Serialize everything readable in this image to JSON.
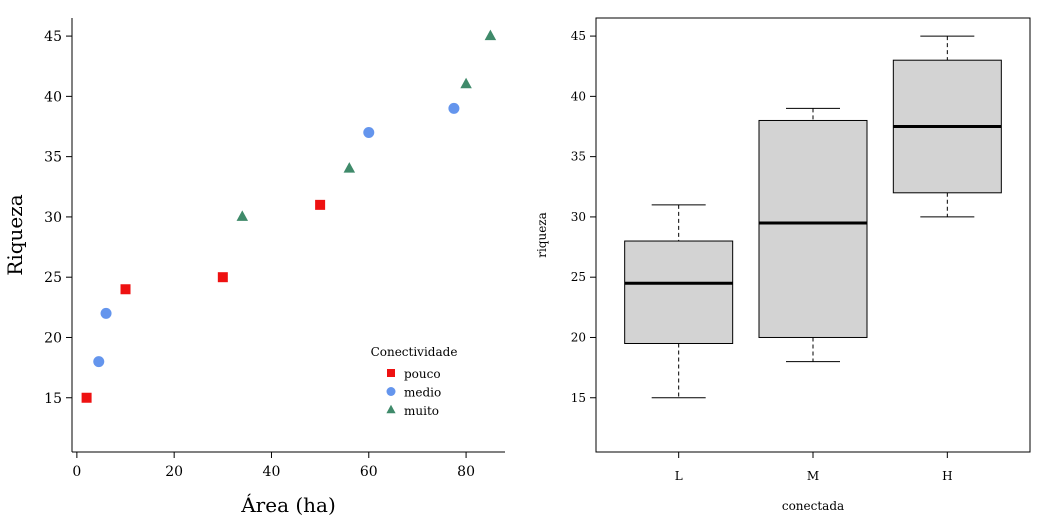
{
  "chart_data": [
    {
      "type": "scatter",
      "xlabel": "Área (ha)",
      "ylabel": "Riqueza",
      "xlim": [
        -1,
        88
      ],
      "ylim": [
        10.5,
        46.5
      ],
      "x_ticks": [
        0,
        20,
        40,
        60,
        80
      ],
      "y_ticks": [
        15,
        20,
        25,
        30,
        35,
        40,
        45
      ],
      "legend": {
        "title": "Conectividade",
        "placement": "bottom-right"
      },
      "series": [
        {
          "name": "pouco",
          "marker": "square",
          "color": "#ee1111",
          "points": [
            {
              "x": 2,
              "y": 15
            },
            {
              "x": 10,
              "y": 24
            },
            {
              "x": 30,
              "y": 25
            },
            {
              "x": 50,
              "y": 31
            }
          ]
        },
        {
          "name": "medio",
          "marker": "circle",
          "color": "#6495ed",
          "points": [
            {
              "x": 4.5,
              "y": 18
            },
            {
              "x": 6,
              "y": 22
            },
            {
              "x": 60,
              "y": 37
            },
            {
              "x": 77.5,
              "y": 39
            }
          ]
        },
        {
          "name": "muito",
          "marker": "triangle",
          "color": "#3f8a6a",
          "points": [
            {
              "x": 34,
              "y": 30
            },
            {
              "x": 56,
              "y": 34
            },
            {
              "x": 80,
              "y": 41
            },
            {
              "x": 85,
              "y": 45
            }
          ]
        }
      ]
    },
    {
      "type": "boxplot",
      "xlabel": "conectada",
      "ylabel": "riqueza",
      "ylim": [
        10.5,
        46.5
      ],
      "y_ticks": [
        15,
        20,
        25,
        30,
        35,
        40,
        45
      ],
      "box_color": "#d3d3d3",
      "categories": [
        "L",
        "M",
        "H"
      ],
      "boxes": [
        {
          "name": "L",
          "min": 15,
          "q1": 19.5,
          "median": 24.5,
          "q3": 28,
          "max": 31
        },
        {
          "name": "M",
          "min": 18,
          "q1": 20,
          "median": 29.5,
          "q3": 38,
          "max": 39
        },
        {
          "name": "H",
          "min": 30,
          "q1": 32,
          "median": 37.5,
          "q3": 43,
          "max": 45
        }
      ]
    }
  ]
}
